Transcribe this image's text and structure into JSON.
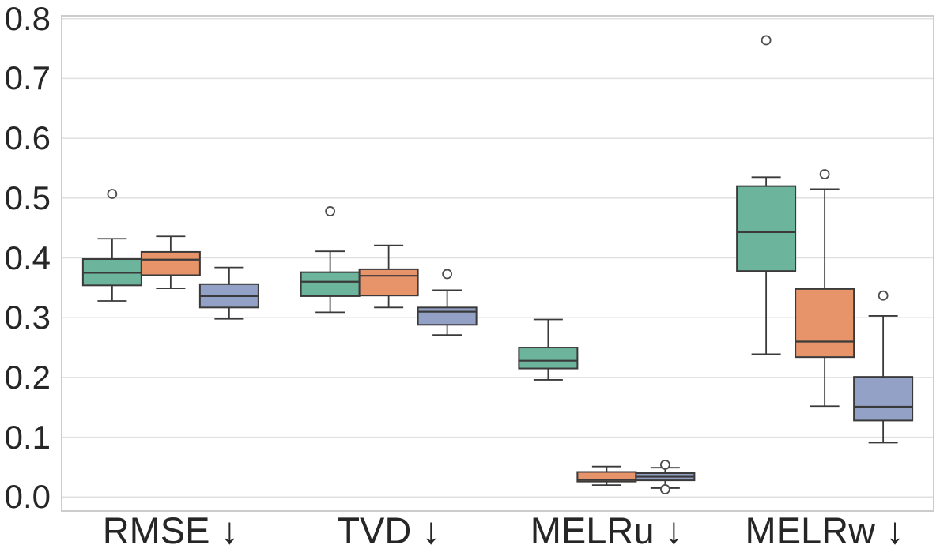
{
  "figure": {
    "background": "#ffffff"
  },
  "axis": {
    "y_tick_labels": [
      "0.0",
      "0.1",
      "0.2",
      "0.3",
      "0.4",
      "0.5",
      "0.6",
      "0.7",
      "0.8"
    ],
    "x_category_labels": [
      "RMSE ↓",
      "TVD ↓",
      "MELRu ↓",
      "MELRw ↓"
    ]
  },
  "chart_data": {
    "type": "box",
    "title": "",
    "xlabel": "",
    "ylabel": "",
    "categories": [
      "RMSE ↓",
      "TVD ↓",
      "MELRu ↓",
      "MELRw ↓"
    ],
    "y_ticks": [
      0.0,
      0.1,
      0.2,
      0.3,
      0.4,
      0.5,
      0.6,
      0.7,
      0.8
    ],
    "ylim": [
      -0.024,
      0.805
    ],
    "grid": "horizontal",
    "legend": "none",
    "colors": {
      "edge": "#3a3a3a",
      "grid": "#e0e0e0",
      "frame": "#cccccc",
      "tick_text": "#262626",
      "flier_stroke": "#4d4d4d"
    },
    "series": [
      {
        "name": "series-green",
        "fill": "#6db49c",
        "boxes": [
          {
            "whislo": 0.328,
            "q1": 0.354,
            "med": 0.375,
            "q3": 0.398,
            "whishi": 0.432,
            "fliers": [
              0.507
            ]
          },
          {
            "whislo": 0.309,
            "q1": 0.336,
            "med": 0.36,
            "q3": 0.376,
            "whishi": 0.411,
            "fliers": [
              0.478
            ]
          },
          {
            "whislo": 0.196,
            "q1": 0.215,
            "med": 0.228,
            "q3": 0.25,
            "whishi": 0.297,
            "fliers": []
          },
          {
            "whislo": 0.239,
            "q1": 0.378,
            "med": 0.443,
            "q3": 0.52,
            "whishi": 0.535,
            "fliers": [
              0.764
            ]
          }
        ]
      },
      {
        "name": "series-orange",
        "fill": "#e8946b",
        "boxes": [
          {
            "whislo": 0.349,
            "q1": 0.371,
            "med": 0.397,
            "q3": 0.41,
            "whishi": 0.436,
            "fliers": []
          },
          {
            "whislo": 0.317,
            "q1": 0.337,
            "med": 0.37,
            "q3": 0.381,
            "whishi": 0.421,
            "fliers": []
          },
          {
            "whislo": 0.02,
            "q1": 0.026,
            "med": 0.029,
            "q3": 0.042,
            "whishi": 0.051,
            "fliers": []
          },
          {
            "whislo": 0.152,
            "q1": 0.234,
            "med": 0.26,
            "q3": 0.348,
            "whishi": 0.515,
            "fliers": [
              0.54
            ]
          }
        ]
      },
      {
        "name": "series-blue",
        "fill": "#94a1c6",
        "boxes": [
          {
            "whislo": 0.298,
            "q1": 0.317,
            "med": 0.336,
            "q3": 0.356,
            "whishi": 0.384,
            "fliers": []
          },
          {
            "whislo": 0.271,
            "q1": 0.288,
            "med": 0.31,
            "q3": 0.317,
            "whishi": 0.346,
            "fliers": [
              0.373
            ]
          },
          {
            "whislo": 0.015,
            "q1": 0.028,
            "med": 0.034,
            "q3": 0.04,
            "whishi": 0.049,
            "fliers": [
              0.054,
              0.013
            ]
          },
          {
            "whislo": 0.091,
            "q1": 0.128,
            "med": 0.151,
            "q3": 0.201,
            "whishi": 0.303,
            "fliers": [
              0.337
            ]
          }
        ]
      }
    ]
  }
}
